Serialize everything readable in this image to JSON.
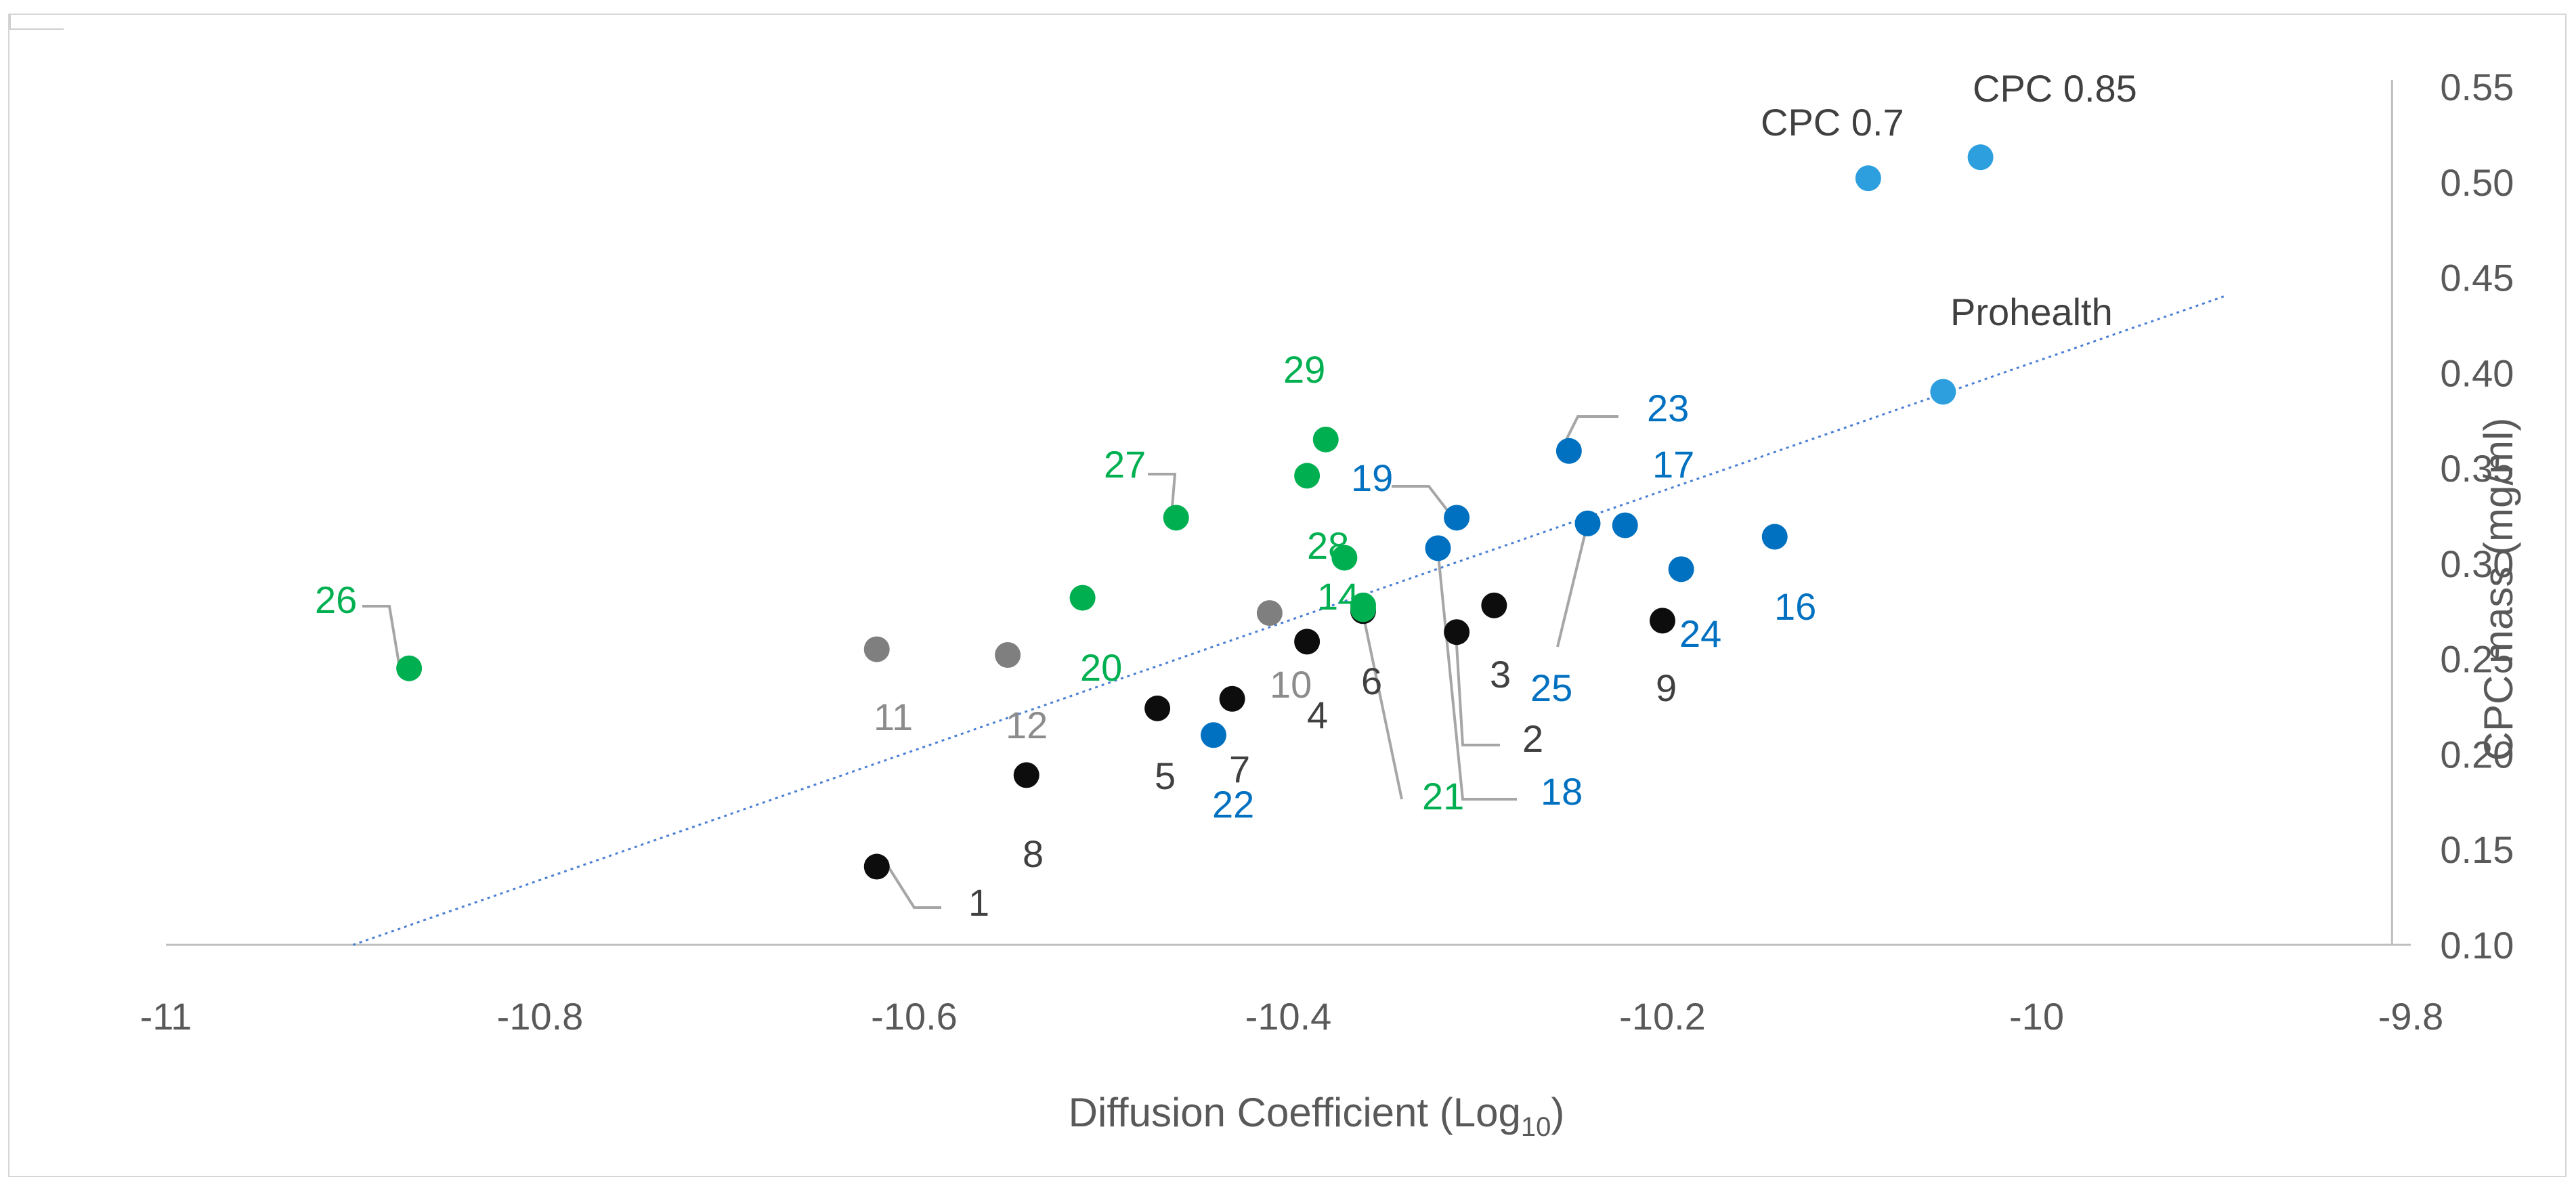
{
  "colors": {
    "black": "#0d0d0d",
    "gray": "#7f7f7f",
    "green": "#00b050",
    "blue": "#0070c0",
    "lightblue": "#2e9fde",
    "label_dark": "#404040",
    "label_gray": "#8c8c8c",
    "label_green": "#00b050",
    "label_blue": "#0070c0",
    "trend": "#4a7fd4",
    "axis": "#bfbfbf",
    "leader": "#a6a6a6"
  },
  "chart_data": {
    "type": "scatter",
    "title": "",
    "xlabel_main": "Diffusion Coefficient (Log",
    "xlabel_sub": "10",
    "xlabel_end": ")",
    "ylabel": "CPC mass (mg/ml)",
    "xlim": [
      -11,
      -9.8
    ],
    "ylim": [
      0.1,
      0.55
    ],
    "x_ticks": [
      "-11",
      "-10.8",
      "-10.6",
      "-10.4",
      "-10.2",
      "-10",
      "-9.8"
    ],
    "x_tick_values": [
      -11,
      -10.8,
      -10.6,
      -10.4,
      -10.2,
      -10,
      -9.8
    ],
    "y_ticks": [
      "0.10",
      "0.15",
      "0.20",
      "0.25",
      "0.30",
      "0.35",
      "0.40",
      "0.45",
      "0.50",
      "0.55"
    ],
    "y_tick_values": [
      0.1,
      0.15,
      0.2,
      0.25,
      0.3,
      0.35,
      0.4,
      0.45,
      0.5,
      0.55
    ],
    "y_axis_position": -9.81,
    "trendline": {
      "x": [
        -10.9,
        -9.9
      ],
      "y": [
        0.1,
        0.44
      ]
    },
    "points": [
      {
        "label": "1",
        "x": -10.62,
        "y": 0.141,
        "group": "black",
        "dx": 40,
        "dy": 30,
        "leader": true
      },
      {
        "label": "2",
        "x": -10.31,
        "y": 0.264,
        "group": "black",
        "dx": 25,
        "dy": 70,
        "leader": true
      },
      {
        "label": "3",
        "x": -10.29,
        "y": 0.278,
        "group": "black",
        "dx": 0,
        "dy": 40,
        "leader": false
      },
      {
        "label": "4",
        "x": -10.39,
        "y": 0.259,
        "group": "black",
        "dx": 10,
        "dy": 50,
        "leader": false
      },
      {
        "label": "5",
        "x": -10.47,
        "y": 0.224,
        "group": "black",
        "dx": 10,
        "dy": 50,
        "leader": false
      },
      {
        "label": "6",
        "x": -10.36,
        "y": 0.275,
        "group": "black",
        "dx": 0,
        "dy": 50,
        "leader": false
      },
      {
        "label": "7",
        "x": -10.43,
        "y": 0.229,
        "group": "black",
        "dx": 10,
        "dy": 50,
        "leader": false
      },
      {
        "label": "8",
        "x": -10.54,
        "y": 0.189,
        "group": "black",
        "dx": 10,
        "dy": 50,
        "leader": false
      },
      {
        "label": "9",
        "x": -10.2,
        "y": 0.27,
        "group": "black",
        "dx": 0,
        "dy": 50,
        "leader": false
      },
      {
        "label": "10",
        "x": -10.41,
        "y": 0.274,
        "group": "gray",
        "dx": 10,
        "dy": 50,
        "leader": false
      },
      {
        "label": "11",
        "x": -10.62,
        "y": 0.255,
        "group": "gray",
        "dx": 10,
        "dy": 50,
        "leader": false
      },
      {
        "label": "12",
        "x": -10.55,
        "y": 0.252,
        "group": "gray",
        "dx": 10,
        "dy": 50,
        "leader": false
      },
      {
        "label": "14",
        "x": -10.36,
        "y": 0.278,
        "group": "green",
        "dx": 10,
        "dy": 50,
        "leader": false
      },
      {
        "label": "16",
        "x": -10.14,
        "y": 0.314,
        "group": "blue",
        "dx": 10,
        "dy": 50,
        "leader": false
      },
      {
        "label": "17",
        "x": -10.22,
        "y": 0.32,
        "group": "blue",
        "dx": 10,
        "dy": 50,
        "leader": false
      },
      {
        "label": "18",
        "x": -10.32,
        "y": 0.308,
        "group": "blue",
        "dx": 25,
        "dy": 80,
        "leader": true
      },
      {
        "label": "19",
        "x": -10.31,
        "y": 0.324,
        "group": "blue",
        "dx": 10,
        "dy": 50,
        "leader": true
      },
      {
        "label": "20",
        "x": -10.51,
        "y": 0.282,
        "group": "green",
        "dx": 10,
        "dy": 50,
        "leader": false
      },
      {
        "label": "21",
        "x": -10.36,
        "y": 0.276,
        "group": "green",
        "dx": 25,
        "dy": 80,
        "leader": true
      },
      {
        "label": "22",
        "x": -10.44,
        "y": 0.21,
        "group": "blue",
        "dx": 10,
        "dy": 50,
        "leader": false
      },
      {
        "label": "23",
        "x": -10.25,
        "y": 0.359,
        "group": "blue",
        "dx": 10,
        "dy": 50,
        "leader": true
      },
      {
        "label": "24",
        "x": -10.19,
        "y": 0.297,
        "group": "blue",
        "dx": 10,
        "dy": 50,
        "leader": false
      },
      {
        "label": "25",
        "x": -10.24,
        "y": 0.321,
        "group": "blue",
        "dx": 20,
        "dy": 70,
        "leader": true
      },
      {
        "label": "26",
        "x": -10.87,
        "y": 0.245,
        "group": "green",
        "dx": 10,
        "dy": 50,
        "leader": true
      },
      {
        "label": "27",
        "x": -10.46,
        "y": 0.324,
        "group": "green",
        "dx": 10,
        "dy": 50,
        "leader": true
      },
      {
        "label": "28",
        "x": -10.37,
        "y": 0.303,
        "group": "green",
        "dx": 10,
        "dy": 50,
        "leader": false
      },
      {
        "label": "29",
        "x": -10.38,
        "y": 0.365,
        "group": "green",
        "dx": 10,
        "dy": 50,
        "leader": false
      },
      {
        "label": "",
        "x": -10.39,
        "y": 0.346,
        "group": "green",
        "dx": 0,
        "dy": 0,
        "leader": false
      },
      {
        "label": "CPC 0.7",
        "x": -10.09,
        "y": 0.502,
        "group": "lightblue",
        "dx": 10,
        "dy": 50,
        "leader": false
      },
      {
        "label": "CPC 0.85",
        "x": -10.03,
        "y": 0.513,
        "group": "lightblue",
        "dx": 10,
        "dy": 50,
        "leader": false
      },
      {
        "label": "Prohealth",
        "x": -10.05,
        "y": 0.39,
        "group": "lightblue",
        "dx": 10,
        "dy": 50,
        "leader": false
      }
    ]
  }
}
